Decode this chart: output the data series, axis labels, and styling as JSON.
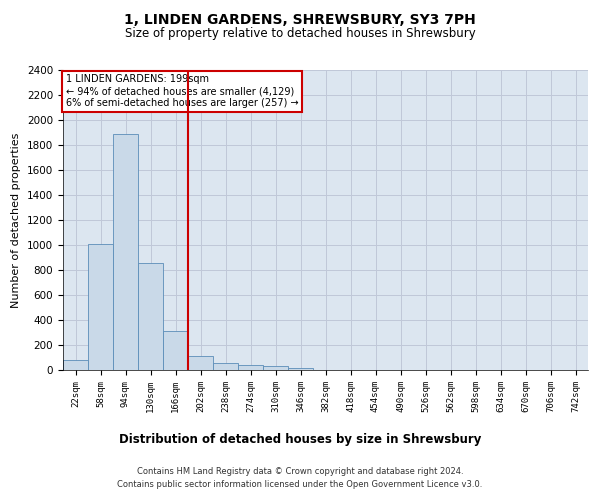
{
  "title": "1, LINDEN GARDENS, SHREWSBURY, SY3 7PH",
  "subtitle": "Size of property relative to detached houses in Shrewsbury",
  "xlabel": "Distribution of detached houses by size in Shrewsbury",
  "ylabel": "Number of detached properties",
  "categories": [
    "22sqm",
    "58sqm",
    "94sqm",
    "130sqm",
    "166sqm",
    "202sqm",
    "238sqm",
    "274sqm",
    "310sqm",
    "346sqm",
    "382sqm",
    "418sqm",
    "454sqm",
    "490sqm",
    "526sqm",
    "562sqm",
    "598sqm",
    "634sqm",
    "670sqm",
    "706sqm",
    "742sqm"
  ],
  "values": [
    80,
    1010,
    1890,
    860,
    310,
    110,
    55,
    40,
    30,
    18,
    0,
    0,
    0,
    0,
    0,
    0,
    0,
    0,
    0,
    0,
    0
  ],
  "bar_color": "#c9d9e8",
  "bar_edge_color": "#5b8db8",
  "vline_x_index": 5,
  "vline_color": "#cc0000",
  "annotation_text": "1 LINDEN GARDENS: 199sqm\n← 94% of detached houses are smaller (4,129)\n6% of semi-detached houses are larger (257) →",
  "annotation_box_color": "#cc0000",
  "annotation_text_color": "#000000",
  "ylim": [
    0,
    2400
  ],
  "yticks": [
    0,
    200,
    400,
    600,
    800,
    1000,
    1200,
    1400,
    1600,
    1800,
    2000,
    2200,
    2400
  ],
  "grid_color": "#c0c8d8",
  "background_color": "#dce6f0",
  "footer_line1": "Contains HM Land Registry data © Crown copyright and database right 2024.",
  "footer_line2": "Contains public sector information licensed under the Open Government Licence v3.0."
}
